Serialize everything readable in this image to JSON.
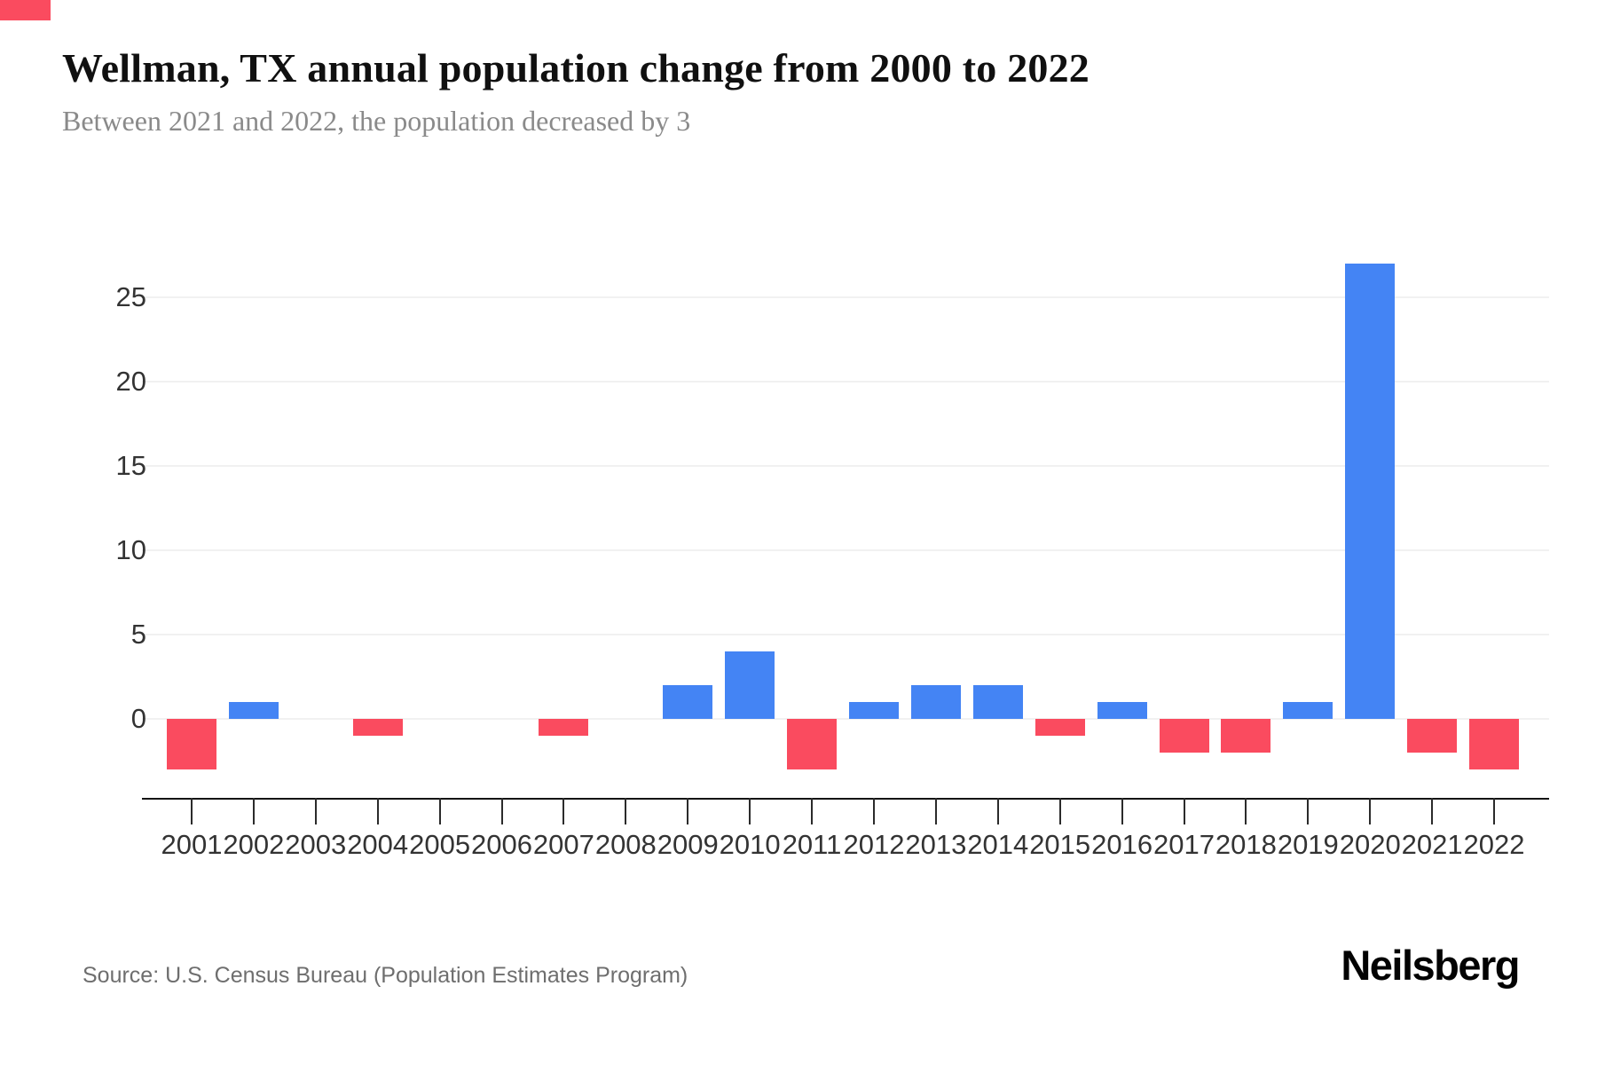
{
  "page": {
    "title": "Wellman, TX annual population change from 2000 to 2022",
    "subtitle": "Between 2021 and 2022, the population decreased by 3",
    "source": "Source: U.S. Census Bureau (Population Estimates Program)",
    "logo": "Neilsberg",
    "accent_red": "#fa4b5f"
  },
  "chart_data": {
    "type": "bar",
    "title": "Wellman, TX annual population change from 2000 to 2022",
    "subtitle": "Between 2021 and 2022, the population decreased by 3",
    "categories": [
      "2001",
      "2002",
      "2003",
      "2004",
      "2005",
      "2006",
      "2007",
      "2008",
      "2009",
      "2010",
      "2011",
      "2012",
      "2013",
      "2014",
      "2015",
      "2016",
      "2017",
      "2018",
      "2019",
      "2020",
      "2021",
      "2022"
    ],
    "values": [
      -3,
      1,
      0,
      -1,
      0,
      0,
      -1,
      0,
      2,
      4,
      -3,
      1,
      2,
      2,
      -1,
      1,
      -2,
      -2,
      1,
      27,
      -2,
      -3
    ],
    "positive_color": "#4484f4",
    "negative_color": "#fa4b5f",
    "ylim": [
      -4,
      28
    ],
    "yticks": [
      0,
      5,
      10,
      15,
      20,
      25
    ],
    "grid": "horizontal",
    "legend": "none",
    "xlabel": "",
    "ylabel": ""
  }
}
